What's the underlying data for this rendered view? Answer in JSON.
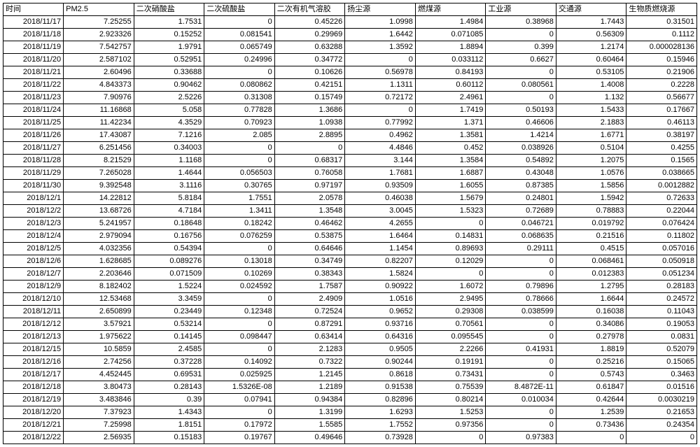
{
  "table": {
    "columns": [
      "时间",
      "PM2.5",
      "二次硝酸盐",
      "二次硫酸盐",
      "二次有机气溶胶",
      "扬尘源",
      "燃煤源",
      "工业源",
      "交通源",
      "生物质燃烧源"
    ],
    "rows": [
      [
        "2018/11/17",
        "7.25255",
        "1.7531",
        "0",
        "0.45226",
        "1.0998",
        "1.4984",
        "0.38968",
        "1.7443",
        "0.31501"
      ],
      [
        "2018/11/18",
        "2.923326",
        "0.15252",
        "0.081541",
        "0.29969",
        "1.6442",
        "0.071085",
        "0",
        "0.56309",
        "0.1112"
      ],
      [
        "2018/11/19",
        "7.542757",
        "1.9791",
        "0.065749",
        "0.63288",
        "1.3592",
        "1.8894",
        "0.399",
        "1.2174",
        "0.000028136"
      ],
      [
        "2018/11/20",
        "2.587102",
        "0.52951",
        "0.24996",
        "0.34772",
        "0",
        "0.033112",
        "0.6627",
        "0.60464",
        "0.15946"
      ],
      [
        "2018/11/21",
        "2.60496",
        "0.33688",
        "0",
        "0.10626",
        "0.56978",
        "0.84193",
        "0",
        "0.53105",
        "0.21906"
      ],
      [
        "2018/11/22",
        "4.843373",
        "0.90462",
        "0.080862",
        "0.42151",
        "1.1311",
        "0.60112",
        "0.080561",
        "1.4008",
        "0.2228"
      ],
      [
        "2018/11/23",
        "7.90976",
        "2.5226",
        "0.31308",
        "0.15749",
        "0.72172",
        "2.4961",
        "0",
        "1.132",
        "0.56677"
      ],
      [
        "2018/11/24",
        "11.16868",
        "5.058",
        "0.77828",
        "1.3686",
        "0",
        "1.7419",
        "0.50193",
        "1.5433",
        "0.17667"
      ],
      [
        "2018/11/25",
        "11.42234",
        "4.3529",
        "0.70923",
        "1.0938",
        "0.77992",
        "1.371",
        "0.46606",
        "2.1883",
        "0.46113"
      ],
      [
        "2018/11/26",
        "17.43087",
        "7.1216",
        "2.085",
        "2.8895",
        "0.4962",
        "1.3581",
        "1.4214",
        "1.6771",
        "0.38197"
      ],
      [
        "2018/11/27",
        "6.251456",
        "0.34003",
        "0",
        "0",
        "4.4846",
        "0.452",
        "0.038926",
        "0.5104",
        "0.4255"
      ],
      [
        "2018/11/28",
        "8.21529",
        "1.1168",
        "0",
        "0.68317",
        "3.144",
        "1.3584",
        "0.54892",
        "1.2075",
        "0.1565"
      ],
      [
        "2018/11/29",
        "7.265028",
        "1.4644",
        "0.056503",
        "0.76058",
        "1.7681",
        "1.6887",
        "0.43048",
        "1.0576",
        "0.038665"
      ],
      [
        "2018/11/30",
        "9.392548",
        "3.1116",
        "0.30765",
        "0.97197",
        "0.93509",
        "1.6055",
        "0.87385",
        "1.5856",
        "0.0012882"
      ],
      [
        "2018/12/1",
        "14.22812",
        "5.8184",
        "1.7551",
        "2.0578",
        "0.46038",
        "1.5679",
        "0.24801",
        "1.5942",
        "0.72633"
      ],
      [
        "2018/12/2",
        "13.68726",
        "4.7184",
        "1.3411",
        "1.3548",
        "3.0045",
        "1.5323",
        "0.72689",
        "0.78883",
        "0.22044"
      ],
      [
        "2018/12/3",
        "5.241957",
        "0.18648",
        "0.18242",
        "0.46462",
        "4.2655",
        "0",
        "0.046721",
        "0.019792",
        "0.076424"
      ],
      [
        "2018/12/4",
        "2.979094",
        "0.16756",
        "0.076259",
        "0.53875",
        "1.6464",
        "0.14831",
        "0.068635",
        "0.21516",
        "0.11802"
      ],
      [
        "2018/12/5",
        "4.032356",
        "0.54394",
        "0",
        "0.64646",
        "1.1454",
        "0.89693",
        "0.29111",
        "0.4515",
        "0.057016"
      ],
      [
        "2018/12/6",
        "1.628685",
        "0.089276",
        "0.13018",
        "0.34749",
        "0.82207",
        "0.12029",
        "0",
        "0.068461",
        "0.050918"
      ],
      [
        "2018/12/7",
        "2.203646",
        "0.071509",
        "0.10269",
        "0.38343",
        "1.5824",
        "0",
        "0",
        "0.012383",
        "0.051234"
      ],
      [
        "2018/12/9",
        "8.182402",
        "1.5224",
        "0.024592",
        "1.7587",
        "0.90922",
        "1.6072",
        "0.79896",
        "1.2795",
        "0.28183"
      ],
      [
        "2018/12/10",
        "12.53468",
        "3.3459",
        "0",
        "2.4909",
        "1.0516",
        "2.9495",
        "0.78666",
        "1.6644",
        "0.24572"
      ],
      [
        "2018/12/11",
        "2.650899",
        "0.23449",
        "0.12348",
        "0.72524",
        "0.9652",
        "0.29308",
        "0.038599",
        "0.16038",
        "0.11043"
      ],
      [
        "2018/12/12",
        "3.57921",
        "0.53214",
        "0",
        "0.87291",
        "0.93716",
        "0.70561",
        "0",
        "0.34086",
        "0.19053"
      ],
      [
        "2018/12/13",
        "1.975622",
        "0.14145",
        "0.098447",
        "0.63414",
        "0.64316",
        "0.095545",
        "0",
        "0.27978",
        "0.0831"
      ],
      [
        "2018/12/15",
        "10.5859",
        "2.4585",
        "0",
        "2.1283",
        "0.9505",
        "2.2266",
        "0.41931",
        "1.8819",
        "0.52079"
      ],
      [
        "2018/12/16",
        "2.74256",
        "0.37228",
        "0.14092",
        "0.7322",
        "0.90244",
        "0.19191",
        "0",
        "0.25216",
        "0.15065"
      ],
      [
        "2018/12/17",
        "4.452445",
        "0.69531",
        "0.025925",
        "1.2145",
        "0.8618",
        "0.73431",
        "0",
        "0.5743",
        "0.3463"
      ],
      [
        "2018/12/18",
        "3.80473",
        "0.28143",
        "1.5326E-08",
        "1.2189",
        "0.91538",
        "0.75539",
        "8.4872E-11",
        "0.61847",
        "0.01516"
      ],
      [
        "2018/12/19",
        "3.483846",
        "0.39",
        "0.07941",
        "0.94384",
        "0.82896",
        "0.80214",
        "0.010034",
        "0.42644",
        "0.0030219"
      ],
      [
        "2018/12/20",
        "7.37923",
        "1.4343",
        "0",
        "1.3199",
        "1.6293",
        "1.5253",
        "0",
        "1.2539",
        "0.21653"
      ],
      [
        "2018/12/21",
        "7.25998",
        "1.8151",
        "0.17972",
        "1.5585",
        "1.7552",
        "0.97356",
        "0",
        "0.73436",
        "0.24354"
      ],
      [
        "2018/12/22",
        "2.56935",
        "0.15183",
        "0.19767",
        "0.49646",
        "0.73928",
        "0",
        "0.97383",
        "0",
        "0"
      ]
    ],
    "border_color": "#000000",
    "background_color": "#ffffff",
    "text_color": "#000000",
    "font_size_pt": 9,
    "header_align": "left",
    "date_align": "right",
    "value_align": "right",
    "col_count": 10,
    "row_count": 34
  }
}
